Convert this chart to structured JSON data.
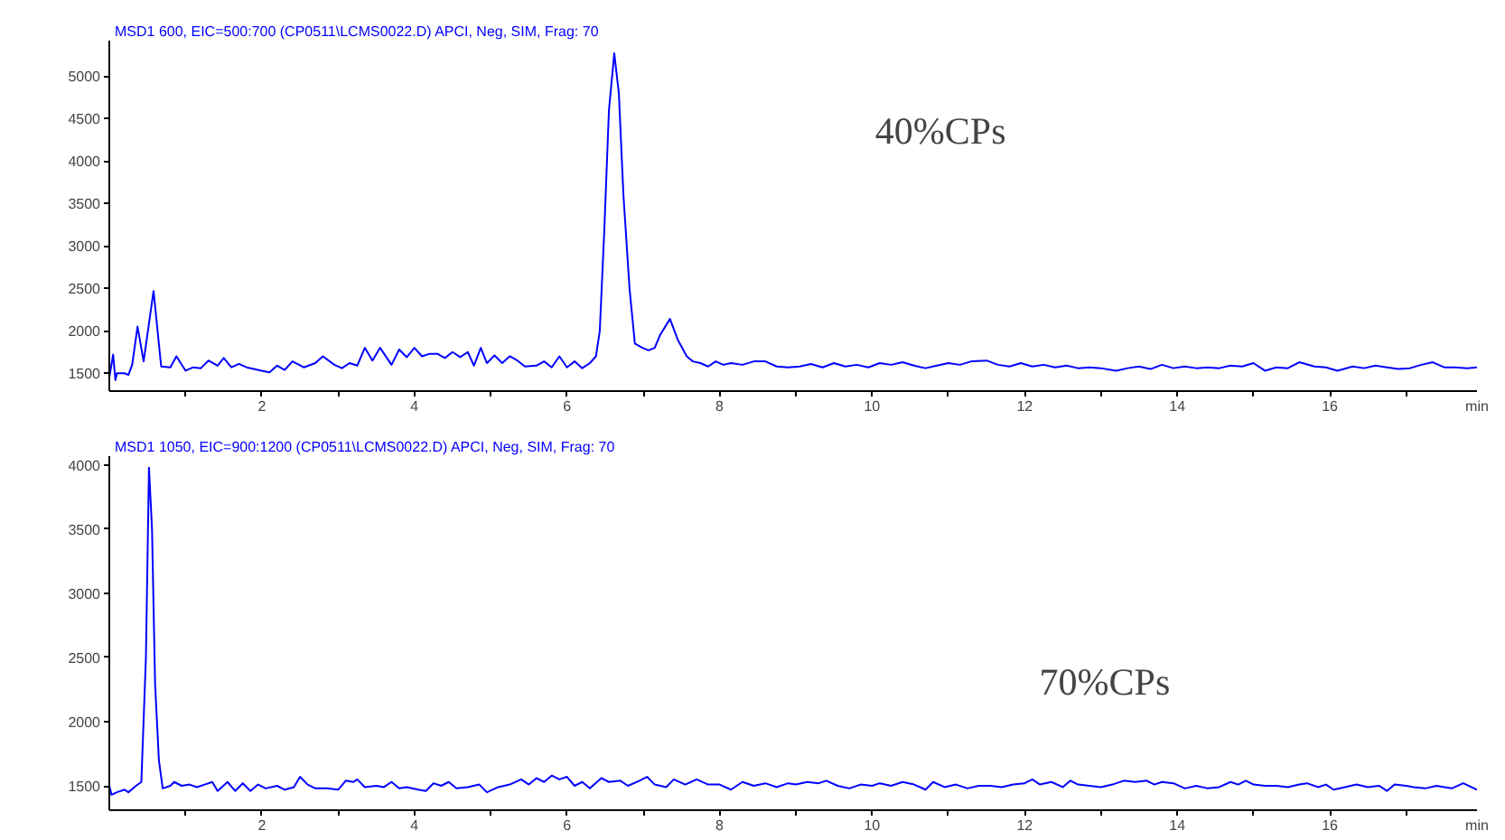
{
  "chart_data": [
    {
      "type": "line",
      "title": "MSD1 600, EIC=500:700 (CP0511\\LCMS0022.D)     APCI, Neg, SIM, Frag: 70",
      "xlabel": "min",
      "color": "#0000ff",
      "x": [
        0.0,
        0.05,
        0.08,
        0.1,
        0.2,
        0.25,
        0.3,
        0.37,
        0.45,
        0.58,
        0.68,
        0.8,
        0.88,
        1.0,
        1.1,
        1.2,
        1.3,
        1.42,
        1.5,
        1.6,
        1.7,
        1.8,
        2.0,
        2.1,
        2.2,
        2.3,
        2.4,
        2.55,
        2.7,
        2.8,
        2.95,
        3.05,
        3.15,
        3.25,
        3.35,
        3.45,
        3.55,
        3.7,
        3.8,
        3.9,
        4.0,
        4.1,
        4.2,
        4.3,
        4.4,
        4.5,
        4.6,
        4.7,
        4.78,
        4.87,
        4.95,
        5.05,
        5.15,
        5.25,
        5.35,
        5.45,
        5.6,
        5.7,
        5.8,
        5.9,
        6.0,
        6.1,
        6.2,
        6.3,
        6.38,
        6.43,
        6.49,
        6.55,
        6.62,
        6.68,
        6.74,
        6.82,
        6.89,
        6.99,
        7.07,
        7.15,
        7.22,
        7.35,
        7.45,
        7.57,
        7.65,
        7.75,
        7.85,
        7.95,
        8.05,
        8.15,
        8.3,
        8.45,
        8.6,
        8.75,
        8.9,
        9.05,
        9.2,
        9.35,
        9.5,
        9.65,
        9.8,
        9.95,
        10.1,
        10.25,
        10.4,
        10.55,
        10.7,
        10.85,
        11.0,
        11.15,
        11.3,
        11.5,
        11.65,
        11.8,
        11.95,
        12.1,
        12.25,
        12.4,
        12.55,
        12.7,
        12.85,
        13.0,
        13.2,
        13.35,
        13.5,
        13.65,
        13.8,
        13.95,
        14.1,
        14.25,
        14.4,
        14.55,
        14.7,
        14.85,
        15.0,
        15.15,
        15.3,
        15.45,
        15.6,
        15.8,
        15.95,
        16.1,
        16.3,
        16.45,
        16.6,
        16.75,
        16.9,
        17.05,
        17.2,
        17.35,
        17.5,
        17.65,
        17.8,
        17.93
      ],
      "values": [
        1450,
        1720,
        1420,
        1500,
        1500,
        1480,
        1600,
        2050,
        1640,
        2470,
        1580,
        1570,
        1700,
        1530,
        1570,
        1560,
        1650,
        1590,
        1680,
        1570,
        1610,
        1570,
        1530,
        1510,
        1590,
        1540,
        1640,
        1570,
        1620,
        1700,
        1600,
        1560,
        1620,
        1590,
        1800,
        1650,
        1800,
        1600,
        1780,
        1690,
        1800,
        1700,
        1730,
        1730,
        1680,
        1750,
        1690,
        1750,
        1590,
        1800,
        1620,
        1710,
        1620,
        1700,
        1650,
        1580,
        1590,
        1640,
        1570,
        1700,
        1570,
        1640,
        1560,
        1620,
        1700,
        2000,
        3200,
        4600,
        5270,
        4800,
        3600,
        2500,
        1850,
        1800,
        1770,
        1800,
        1950,
        2140,
        1900,
        1700,
        1640,
        1620,
        1580,
        1640,
        1600,
        1620,
        1600,
        1640,
        1640,
        1580,
        1570,
        1580,
        1610,
        1570,
        1620,
        1580,
        1600,
        1570,
        1620,
        1600,
        1630,
        1590,
        1560,
        1590,
        1620,
        1600,
        1640,
        1650,
        1600,
        1580,
        1620,
        1580,
        1600,
        1570,
        1590,
        1560,
        1570,
        1560,
        1530,
        1560,
        1580,
        1550,
        1600,
        1560,
        1580,
        1560,
        1570,
        1560,
        1590,
        1580,
        1620,
        1530,
        1570,
        1560,
        1630,
        1580,
        1570,
        1530,
        1580,
        1560,
        1590,
        1570,
        1550,
        1560,
        1600,
        1630,
        1570,
        1570,
        1560,
        1570
      ],
      "xlim": [
        0,
        17.93
      ],
      "xticks": [
        {
          "value": 1,
          "label": null
        },
        2,
        {
          "value": 3,
          "label": null
        },
        4,
        {
          "value": 5,
          "label": null
        },
        6,
        {
          "value": 7,
          "label": null
        },
        8,
        {
          "value": 9,
          "label": null
        },
        10,
        {
          "value": 11,
          "label": null
        },
        12,
        {
          "value": 13,
          "label": null
        },
        14,
        {
          "value": 15,
          "label": null
        },
        16,
        {
          "value": 17,
          "label": null
        }
      ],
      "ylim": [
        1290,
        5420
      ],
      "yticks": [
        1500,
        2000,
        2500,
        3000,
        3500,
        4000,
        4500,
        5000
      ],
      "annotations": [
        "40%CPs"
      ]
    },
    {
      "type": "line",
      "title": "MSD1 1050, EIC=900:1200 (CP0511\\LCMS0022.D)     APCI, Neg, SIM, Frag: 70",
      "xlabel": "min",
      "color": "#0000ff",
      "x": [
        0.0,
        0.03,
        0.1,
        0.2,
        0.25,
        0.35,
        0.42,
        0.48,
        0.52,
        0.56,
        0.6,
        0.65,
        0.7,
        0.8,
        0.85,
        0.95,
        1.05,
        1.15,
        1.25,
        1.35,
        1.42,
        1.55,
        1.65,
        1.75,
        1.85,
        1.95,
        2.05,
        2.2,
        2.3,
        2.42,
        2.5,
        2.6,
        2.7,
        2.85,
        3.0,
        3.1,
        3.2,
        3.25,
        3.35,
        3.5,
        3.6,
        3.7,
        3.8,
        3.9,
        4.05,
        4.15,
        4.25,
        4.35,
        4.45,
        4.55,
        4.7,
        4.85,
        4.95,
        5.1,
        5.25,
        5.4,
        5.5,
        5.6,
        5.7,
        5.8,
        5.9,
        6.0,
        6.1,
        6.2,
        6.3,
        6.45,
        6.55,
        6.7,
        6.8,
        6.95,
        7.05,
        7.15,
        7.3,
        7.4,
        7.55,
        7.7,
        7.85,
        8.0,
        8.15,
        8.3,
        8.45,
        8.6,
        8.75,
        8.9,
        9.0,
        9.15,
        9.3,
        9.4,
        9.55,
        9.7,
        9.85,
        10.0,
        10.1,
        10.25,
        10.4,
        10.55,
        10.7,
        10.8,
        10.95,
        11.1,
        11.25,
        11.4,
        11.55,
        11.7,
        11.85,
        12.0,
        12.1,
        12.2,
        12.35,
        12.5,
        12.6,
        12.7,
        12.85,
        13.0,
        13.15,
        13.3,
        13.45,
        13.6,
        13.7,
        13.8,
        13.95,
        14.1,
        14.25,
        14.4,
        14.55,
        14.7,
        14.8,
        14.9,
        15.0,
        15.15,
        15.3,
        15.45,
        15.6,
        15.7,
        15.85,
        15.95,
        16.05,
        16.2,
        16.35,
        16.5,
        16.65,
        16.75,
        16.85,
        17.0,
        17.1,
        17.25,
        17.4,
        17.5,
        17.6,
        17.75,
        17.93
      ],
      "values": [
        1500,
        1430,
        1450,
        1470,
        1450,
        1500,
        1530,
        2500,
        3980,
        3500,
        2300,
        1700,
        1480,
        1500,
        1530,
        1500,
        1510,
        1490,
        1510,
        1530,
        1460,
        1530,
        1460,
        1520,
        1460,
        1510,
        1480,
        1500,
        1470,
        1490,
        1570,
        1510,
        1480,
        1480,
        1470,
        1540,
        1530,
        1550,
        1490,
        1500,
        1490,
        1530,
        1480,
        1490,
        1470,
        1460,
        1520,
        1500,
        1530,
        1480,
        1490,
        1510,
        1450,
        1490,
        1510,
        1550,
        1510,
        1560,
        1530,
        1580,
        1550,
        1570,
        1500,
        1530,
        1480,
        1560,
        1530,
        1540,
        1500,
        1540,
        1570,
        1510,
        1490,
        1550,
        1510,
        1550,
        1510,
        1510,
        1470,
        1530,
        1500,
        1520,
        1490,
        1520,
        1510,
        1530,
        1520,
        1540,
        1500,
        1480,
        1510,
        1500,
        1520,
        1500,
        1530,
        1510,
        1470,
        1530,
        1490,
        1510,
        1480,
        1500,
        1500,
        1490,
        1510,
        1520,
        1550,
        1510,
        1530,
        1490,
        1540,
        1510,
        1500,
        1490,
        1510,
        1540,
        1530,
        1540,
        1510,
        1530,
        1520,
        1480,
        1500,
        1480,
        1490,
        1530,
        1510,
        1540,
        1510,
        1500,
        1500,
        1490,
        1510,
        1520,
        1490,
        1510,
        1470,
        1490,
        1510,
        1490,
        1500,
        1460,
        1510,
        1500,
        1490,
        1480,
        1500,
        1490,
        1480,
        1520,
        1470
      ],
      "xlim": [
        0,
        17.93
      ],
      "xticks": [
        {
          "value": 1,
          "label": null
        },
        2,
        {
          "value": 3,
          "label": null
        },
        4,
        {
          "value": 5,
          "label": null
        },
        6,
        {
          "value": 7,
          "label": null
        },
        8,
        {
          "value": 9,
          "label": null
        },
        10,
        {
          "value": 11,
          "label": null
        },
        12,
        {
          "value": 13,
          "label": null
        },
        14,
        {
          "value": 15,
          "label": null
        },
        16,
        {
          "value": 17,
          "label": null
        }
      ],
      "ylim": [
        1310,
        4070
      ],
      "yticks": [
        1500,
        2000,
        2500,
        3000,
        3500,
        4000
      ],
      "annotations": [
        "70%CPs"
      ]
    }
  ]
}
